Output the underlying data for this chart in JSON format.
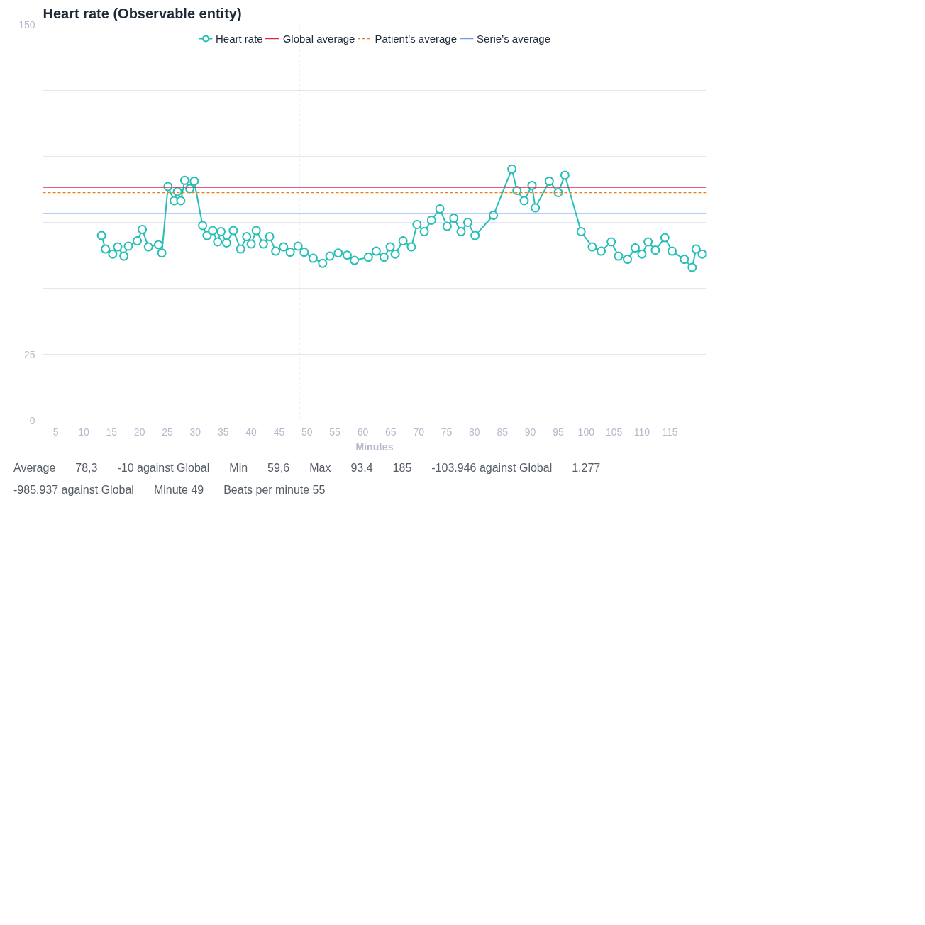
{
  "chart_data": {
    "type": "line",
    "title": "Heart rate (Observable entity)",
    "xlabel": "Minutes",
    "xlim": [
      2.7,
      121.5
    ],
    "xticks": [
      5,
      10,
      15,
      20,
      25,
      30,
      35,
      40,
      45,
      50,
      55,
      60,
      65,
      70,
      75,
      80,
      85,
      90,
      95,
      100,
      105,
      110,
      115
    ],
    "ylim": [
      0,
      150
    ],
    "yticks": [
      0,
      25,
      {
        "value": 50,
        "label": null
      },
      {
        "value": 75,
        "label": null
      },
      {
        "value": 100,
        "label": null
      },
      {
        "value": 125,
        "label": null
      },
      150
    ],
    "grid": "y",
    "legend": "top",
    "series": [
      {
        "name": "Heart rate",
        "color": "#26bfb5",
        "type": "line",
        "marker": "circle",
        "line_style": "solid",
        "x": [
          13.2,
          13.9,
          15.2,
          16.1,
          17.2,
          18.0,
          19.6,
          20.5,
          21.6,
          23.4,
          24.0,
          25.1,
          26.2,
          26.8,
          27.4,
          28.1,
          29.0,
          29.8,
          31.3,
          32.1,
          33.1,
          34.0,
          34.6,
          35.6,
          36.8,
          38.1,
          39.2,
          40.0,
          40.9,
          42.2,
          43.3,
          44.4,
          45.8,
          47.0,
          48.4,
          49.5,
          51.1,
          52.8,
          54.1,
          55.6,
          57.2,
          58.5,
          61.0,
          62.4,
          63.8,
          64.9,
          65.8,
          67.2,
          68.7,
          69.7,
          71.0,
          72.3,
          73.8,
          75.1,
          76.3,
          77.6,
          78.8,
          80.1,
          83.4,
          86.7,
          87.6,
          88.9,
          90.3,
          90.9,
          93.4,
          95.0,
          96.2,
          99.1,
          101.1,
          102.7,
          104.5,
          105.8,
          107.4,
          108.8,
          110.0,
          111.1,
          112.4,
          114.1,
          115.4,
          117.6,
          119.0,
          119.7,
          120.8
        ],
        "values": [
          70,
          64.9,
          63,
          65.7,
          62.2,
          66,
          68,
          72.3,
          65.7,
          66.5,
          63.4,
          88.6,
          83.2,
          86.7,
          83.2,
          90.9,
          87.8,
          90.6,
          73.8,
          70,
          71.9,
          67.6,
          71.5,
          67.2,
          71.9,
          64.9,
          69.6,
          66.8,
          71.9,
          66.8,
          69.6,
          64.1,
          65.7,
          63.7,
          66,
          63.7,
          61.4,
          59.5,
          62.2,
          63.4,
          62.6,
          60.6,
          61.8,
          64.1,
          61.8,
          65.7,
          63,
          68,
          65.7,
          74.2,
          71.5,
          75.8,
          80.1,
          73.5,
          76.6,
          71.5,
          75,
          70,
          77.7,
          95.2,
          87.1,
          83.2,
          89,
          80.5,
          90.6,
          86.3,
          92.9,
          71.5,
          65.7,
          64.1,
          67.6,
          62.2,
          61,
          65.3,
          63,
          67.6,
          64.5,
          69.2,
          64.1,
          61,
          57.9,
          64.9,
          63
        ]
      },
      {
        "name": "Global average",
        "color": "#e0284a",
        "type": "line",
        "marker": "none",
        "line_style": "solid",
        "x": [
          2.7,
          121.5
        ],
        "values": [
          88.3,
          88.3
        ]
      },
      {
        "name": "Patient’s average",
        "color": "#f07a1a",
        "type": "line",
        "marker": "none",
        "line_style": "dashed",
        "x": [
          2.7,
          121.5
        ],
        "values": [
          86.3,
          86.3
        ]
      },
      {
        "name": "Serie’s average",
        "color": "#6b9cf0",
        "type": "line",
        "marker": "none",
        "line_style": "solid",
        "x": [
          2.7,
          121.5
        ],
        "values": [
          78.3,
          78.3
        ]
      }
    ],
    "ref_lines": [
      {
        "axis": "x",
        "value": 48.6,
        "label": null,
        "color": "#c8c8d4",
        "line_style": "dashed"
      }
    ],
    "annotations": [
      "Average",
      "78,3",
      "-10 against Global",
      "Min",
      "59,6",
      "Max",
      "93,4",
      "185",
      "-103.946 against Global",
      "1.277",
      "-985.937 against Global",
      "Minute 49",
      "Beats per minute 55"
    ]
  }
}
